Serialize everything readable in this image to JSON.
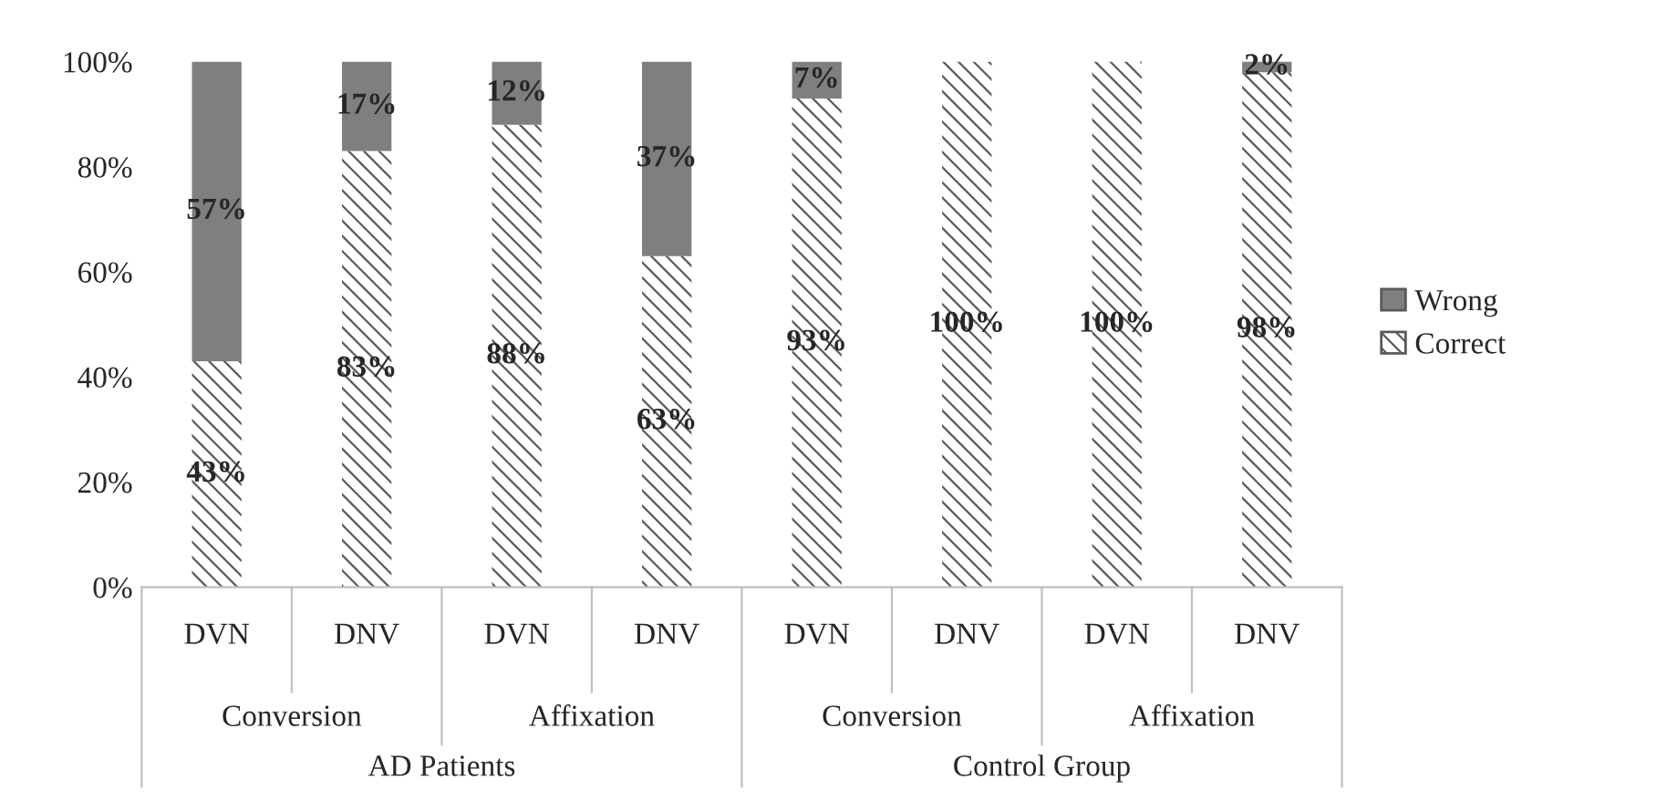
{
  "chart_data": {
    "type": "bar",
    "stacked": true,
    "categories": [
      "DVN",
      "DNV",
      "DVN",
      "DNV",
      "DVN",
      "DNV",
      "DVN",
      "DNV"
    ],
    "series": [
      {
        "name": "Correct",
        "color": "#ffffff",
        "values": [
          43,
          83,
          88,
          63,
          93,
          100,
          100,
          98
        ],
        "value_labels": [
          "43%",
          "83%",
          "88%",
          "63%",
          "93%",
          "100%",
          "100%",
          "98%"
        ]
      },
      {
        "name": "Wrong",
        "color": "#7f7f7f",
        "values": [
          57,
          17,
          12,
          37,
          7,
          0,
          0,
          2
        ],
        "value_labels": [
          "57%",
          "17%",
          "12%",
          "37%",
          "7%",
          null,
          null,
          "2%"
        ]
      }
    ],
    "ylim": [
      0,
      100
    ],
    "yticks": [
      {
        "value": 0,
        "label": "0%"
      },
      {
        "value": 20,
        "label": "20%"
      },
      {
        "value": 40,
        "label": "40%"
      },
      {
        "value": 60,
        "label": "60%"
      },
      {
        "value": 80,
        "label": "80%"
      },
      {
        "value": 100,
        "label": "100%"
      }
    ],
    "annotations": [
      "Conversion",
      "Affixation",
      "Conversion",
      "Affixation",
      "AD Patients",
      "Control Group"
    ],
    "legend": "right",
    "grid": false
  }
}
